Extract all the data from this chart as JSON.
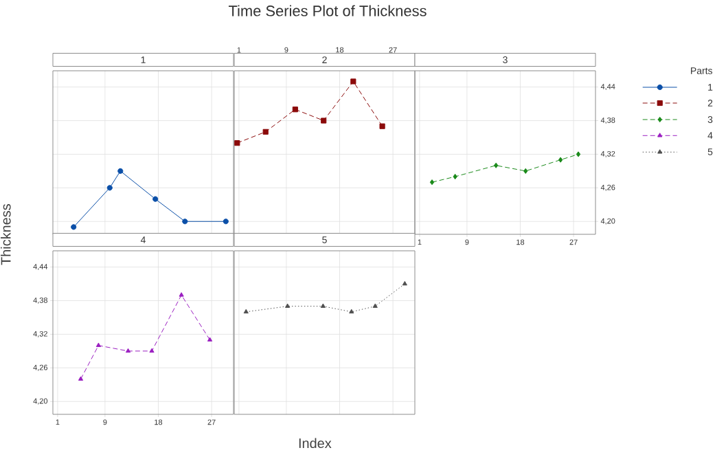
{
  "chart_data": [
    {
      "type": "line",
      "title": "1",
      "annotations": [
        "Time Series Plot of Thickness"
      ],
      "xlim": [
        0.2,
        30.7
      ],
      "ylim": [
        4.177,
        4.469
      ],
      "xticks": [
        1,
        9,
        18,
        27
      ],
      "yticks": [
        {
          "value": 4.2,
          "label": null
        },
        {
          "value": 4.26,
          "label": null
        },
        {
          "value": 4.32,
          "label": null
        },
        {
          "value": 4.38,
          "label": null
        },
        {
          "value": 4.44,
          "label": null
        }
      ],
      "tick_labels": false,
      "grid": true,
      "series": [
        {
          "name": "1",
          "color": "#0b4fa8",
          "marker": "circle",
          "line_style": "solid",
          "x": [
            3.7,
            9.8,
            11.6,
            17.5,
            22.5,
            29.4
          ],
          "values": [
            4.19,
            4.26,
            4.29,
            4.24,
            4.2,
            4.2
          ]
        }
      ]
    },
    {
      "type": "line",
      "title": "2",
      "xlim": [
        0.2,
        30.7
      ],
      "ylim": [
        4.177,
        4.469
      ],
      "xticks": [
        1,
        9,
        18,
        27
      ],
      "yticks": [
        {
          "value": 4.2,
          "label": null
        },
        {
          "value": 4.26,
          "label": null
        },
        {
          "value": 4.32,
          "label": null
        },
        {
          "value": 4.38,
          "label": null
        },
        {
          "value": 4.44,
          "label": null
        }
      ],
      "tick_labels": "x",
      "grid": true,
      "series": [
        {
          "name": "2",
          "color": "#8b0a0a",
          "marker": "square",
          "line_style": "dashed",
          "x": [
            0.7,
            5.5,
            10.5,
            15.3,
            20.3,
            25.2
          ],
          "values": [
            4.34,
            4.36,
            4.4,
            4.38,
            4.45,
            4.37
          ]
        }
      ]
    },
    {
      "type": "line",
      "title": "3",
      "legend": "right",
      "legend_title": "Parts",
      "xlim": [
        0.2,
        30.7
      ],
      "y2lim": [
        4.177,
        4.469
      ],
      "xticks": [
        1,
        9,
        18,
        27
      ],
      "y2ticks": [
        {
          "value": 4.2,
          "label": "4,20"
        },
        {
          "value": 4.26,
          "label": "4,26"
        },
        {
          "value": 4.32,
          "label": "4,32"
        },
        {
          "value": 4.38,
          "label": "4,38"
        },
        {
          "value": 4.44,
          "label": "4,44"
        }
      ],
      "grid": true,
      "series": [
        {
          "name": "3",
          "color": "#1a8a1a",
          "marker": "diamond",
          "line_style": "dashed",
          "axis": "y2",
          "x": [
            3.1,
            7.0,
            13.9,
            18.9,
            24.8,
            27.8
          ],
          "values": [
            4.27,
            4.28,
            4.3,
            4.29,
            4.31,
            4.32
          ]
        }
      ]
    },
    {
      "type": "line",
      "title": "4",
      "xlabel": "Index",
      "ylabel": "Thickness",
      "xlim": [
        0.2,
        30.7
      ],
      "ylim": [
        4.177,
        4.469
      ],
      "xticks": [
        1,
        9,
        18,
        27
      ],
      "yticks": [
        {
          "value": 4.2,
          "label": "4,20"
        },
        {
          "value": 4.26,
          "label": "4,26"
        },
        {
          "value": 4.32,
          "label": "4,32"
        },
        {
          "value": 4.38,
          "label": "4,38"
        },
        {
          "value": 4.44,
          "label": "4,44"
        }
      ],
      "grid": true,
      "series": [
        {
          "name": "4",
          "color": "#9b1fc1",
          "marker": "triangle",
          "line_style": "dashed",
          "x": [
            4.9,
            7.9,
            12.9,
            16.9,
            21.9,
            26.7
          ],
          "values": [
            4.24,
            4.3,
            4.29,
            4.29,
            4.39,
            4.31
          ]
        }
      ]
    },
    {
      "type": "line",
      "title": "5",
      "xlim": [
        0.2,
        30.7
      ],
      "ylim": [
        4.177,
        4.469
      ],
      "xticks": [
        1,
        9,
        18,
        27
      ],
      "yticks": [
        {
          "value": 4.2,
          "label": null
        },
        {
          "value": 4.26,
          "label": null
        },
        {
          "value": 4.32,
          "label": null
        },
        {
          "value": 4.38,
          "label": null
        },
        {
          "value": 4.44,
          "label": null
        }
      ],
      "tick_labels": false,
      "grid": true,
      "series": [
        {
          "name": "5",
          "color": "#505050",
          "marker": "triangle",
          "line_style": "dotted",
          "x": [
            2.2,
            9.2,
            15.2,
            20.0,
            24.0,
            29.0
          ],
          "values": [
            4.36,
            4.37,
            4.37,
            4.36,
            4.37,
            4.41
          ]
        }
      ]
    }
  ]
}
